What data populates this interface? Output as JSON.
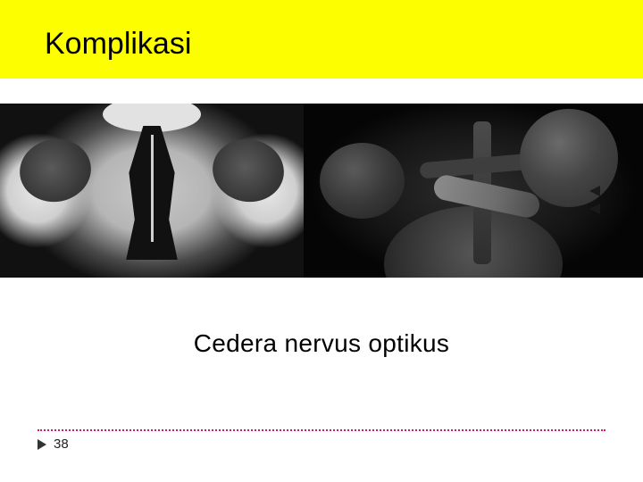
{
  "slide": {
    "title": "Komplikasi",
    "caption": "Cedera nervus optikus",
    "page_number": "38",
    "title_bar_color": "#fdff00",
    "title_text_color": "#000000",
    "caption_color": "#000000",
    "divider_color": "#d51867",
    "arrow_color": "#333333",
    "background_color": "#ffffff",
    "title_fontsize": 34,
    "caption_fontsize": 28,
    "page_fontsize": 15
  },
  "images": {
    "left": {
      "description": "Axial CT scan of skull base showing orbits and nasal cavity",
      "tone": "grayscale",
      "background": "#1a1a1a"
    },
    "right": {
      "description": "Axial MRI of orbits showing optic nerve with arrow markers",
      "tone": "grayscale",
      "background": "#0a0a0a",
      "arrow_marker_color": "#1a1a1a"
    }
  }
}
